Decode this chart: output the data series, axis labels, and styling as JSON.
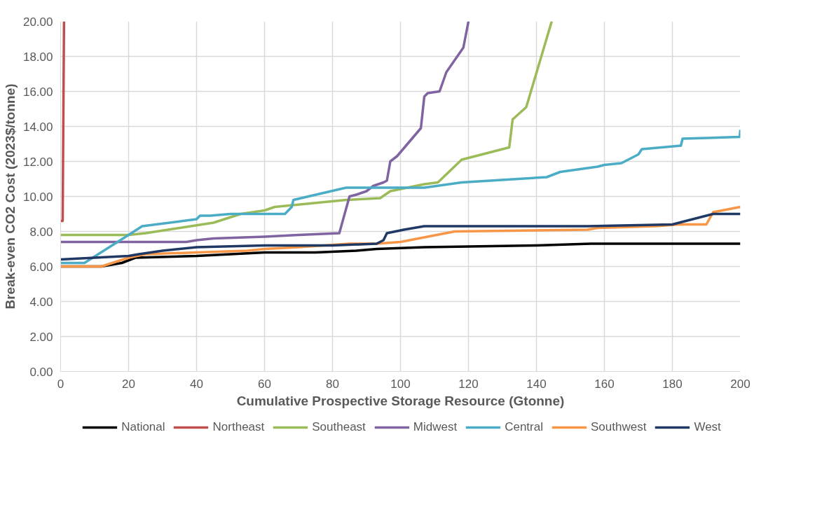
{
  "chart_data": {
    "type": "line",
    "xlabel": "Cumulative Prospective Storage Resource (Gtonne)",
    "ylabel": "Break-even CO2 Cost (2023$/tonne)",
    "xlim": [
      0,
      200
    ],
    "ylim": [
      0,
      20
    ],
    "xticks": [
      0,
      20,
      40,
      60,
      80,
      100,
      120,
      140,
      160,
      180,
      200
    ],
    "yticks": [
      {
        "value": 0,
        "label": "0.00"
      },
      {
        "value": 2,
        "label": "2.00"
      },
      {
        "value": 4,
        "label": "4.00"
      },
      {
        "value": 6,
        "label": "6.00"
      },
      {
        "value": 8,
        "label": "8.00"
      },
      {
        "value": 10,
        "label": "10.00"
      },
      {
        "value": 12,
        "label": "12.00"
      },
      {
        "value": 14,
        "label": "14.00"
      },
      {
        "value": 16,
        "label": "16.00"
      },
      {
        "value": 18,
        "label": "18.00"
      },
      {
        "value": 20,
        "label": "20.00"
      }
    ],
    "grid": true,
    "legend": "bottom",
    "marker": "none",
    "line_style": "solid",
    "series": [
      {
        "name": "National",
        "color": "#000000",
        "x": [
          0,
          12,
          18,
          22,
          40,
          50,
          60,
          75,
          87,
          93,
          107,
          140,
          156,
          200
        ],
        "values": [
          6.0,
          6.0,
          6.2,
          6.5,
          6.6,
          6.7,
          6.8,
          6.8,
          6.9,
          7.0,
          7.1,
          7.2,
          7.3,
          7.3
        ]
      },
      {
        "name": "Northeast",
        "color": "#c0504d",
        "x": [
          0,
          0.6,
          1.0
        ],
        "values": [
          8.6,
          8.6,
          20
        ]
      },
      {
        "name": "Southeast",
        "color": "#9bbb59",
        "x": [
          0,
          20,
          25,
          35,
          45,
          53,
          60,
          63,
          84,
          94,
          97,
          107,
          111,
          118,
          132,
          133,
          137,
          144.5
        ],
        "values": [
          7.8,
          7.8,
          7.9,
          8.2,
          8.5,
          9.0,
          9.2,
          9.4,
          9.8,
          9.9,
          10.3,
          10.7,
          10.8,
          12.1,
          12.8,
          14.4,
          15.1,
          20
        ]
      },
      {
        "name": "Midwest",
        "color": "#8064a2",
        "x": [
          0,
          37,
          40,
          45,
          60,
          70,
          82,
          85,
          87,
          90,
          92,
          95,
          96,
          97,
          99,
          106,
          107,
          108,
          111.5,
          113.5,
          118.5,
          120
        ],
        "values": [
          7.4,
          7.4,
          7.5,
          7.6,
          7.7,
          7.8,
          7.9,
          10.0,
          10.1,
          10.3,
          10.6,
          10.8,
          10.9,
          12.0,
          12.3,
          13.9,
          15.7,
          15.9,
          16.0,
          17.1,
          18.5,
          20
        ]
      },
      {
        "name": "Central",
        "color": "#4bacc6",
        "x": [
          0,
          7,
          20,
          24,
          36,
          40,
          41,
          44,
          50,
          66,
          68,
          68.5,
          84,
          107,
          118,
          143,
          147,
          158,
          160,
          165,
          170,
          171,
          182.5,
          183,
          199.8,
          200
        ],
        "values": [
          6.2,
          6.2,
          7.8,
          8.3,
          8.6,
          8.7,
          8.9,
          8.9,
          9.0,
          9.0,
          9.4,
          9.8,
          10.5,
          10.5,
          10.8,
          11.1,
          11.4,
          11.7,
          11.8,
          11.9,
          12.4,
          12.7,
          12.9,
          13.3,
          13.4,
          13.8
        ]
      },
      {
        "name": "Southwest",
        "color": "#f79646",
        "x": [
          0,
          12,
          20,
          25,
          40,
          55,
          60,
          70,
          85,
          93,
          100,
          108,
          116,
          155,
          158,
          175,
          182,
          190,
          192,
          200
        ],
        "values": [
          6.0,
          6.0,
          6.5,
          6.7,
          6.8,
          6.9,
          7.0,
          7.1,
          7.3,
          7.3,
          7.4,
          7.7,
          8.0,
          8.1,
          8.2,
          8.3,
          8.4,
          8.4,
          9.1,
          9.4
        ]
      },
      {
        "name": "West",
        "color": "#1f3864",
        "x": [
          0,
          20,
          23,
          30,
          40,
          60,
          80,
          93,
          95,
          96,
          101,
          107,
          120,
          140,
          155,
          180,
          192,
          200
        ],
        "values": [
          6.4,
          6.6,
          6.7,
          6.9,
          7.1,
          7.2,
          7.2,
          7.3,
          7.5,
          7.9,
          8.1,
          8.3,
          8.3,
          8.3,
          8.3,
          8.4,
          9.0,
          9.0
        ]
      }
    ]
  }
}
